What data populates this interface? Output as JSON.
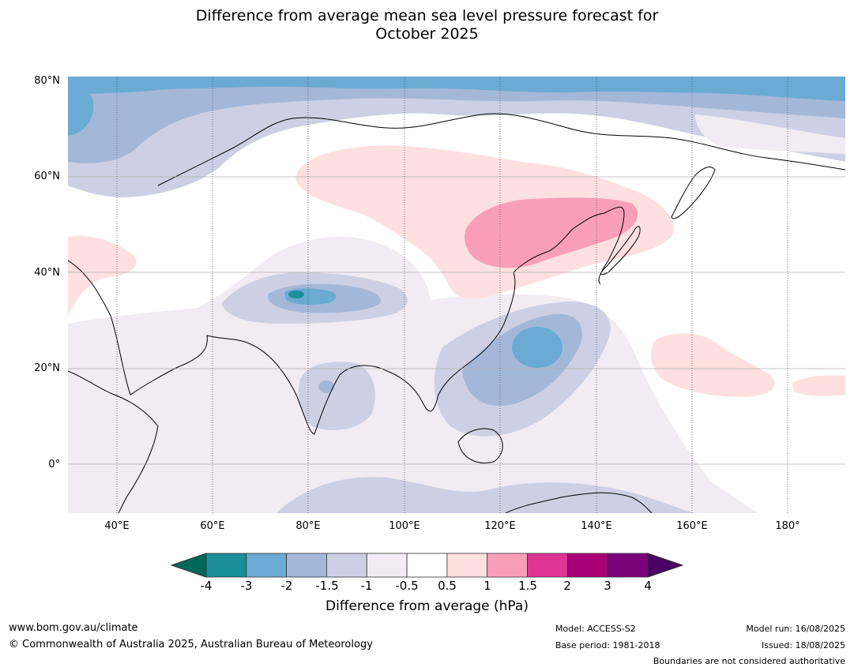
{
  "title_line1": "Difference from average mean sea level pressure forecast for",
  "title_line2": "October 2025",
  "map": {
    "lat_labels": [
      "80°N",
      "60°N",
      "40°N",
      "20°N",
      "0°"
    ],
    "lon_labels": [
      "40°E",
      "60°E",
      "80°E",
      "100°E",
      "120°E",
      "140°E",
      "160°E",
      "180°"
    ],
    "lon_range": [
      30,
      192
    ],
    "lat_range": [
      -10,
      81
    ]
  },
  "colorbar": {
    "ticks": [
      "-4",
      "-3",
      "-2",
      "-1.5",
      "-1",
      "-0.5",
      "0.5",
      "1",
      "1.5",
      "2",
      "3",
      "4"
    ],
    "colors": [
      "#1a8f98",
      "#6aaad3",
      "#a3b8d8",
      "#cdd0e4",
      "#f1ebf4",
      "#ffffff",
      "#fde0df",
      "#f89fb7",
      "#de3495",
      "#aa0077",
      "#7b0379"
    ],
    "extend_low_color": "#01675b",
    "extend_high_color": "#4a0064",
    "label": "Difference from average (hPa)"
  },
  "footer": {
    "website": "www.bom.gov.au/climate",
    "copyright": "© Commonwealth of Australia 2025, Australian Bureau of Meteorology",
    "model": "Model: ACCESS-S2",
    "base_period": "Base period: 1981-2018",
    "model_run": "Model run: 16/08/2025",
    "issued": "Issued: 18/08/2025",
    "boundaries_note": "Boundaries are not considered authoritative"
  }
}
